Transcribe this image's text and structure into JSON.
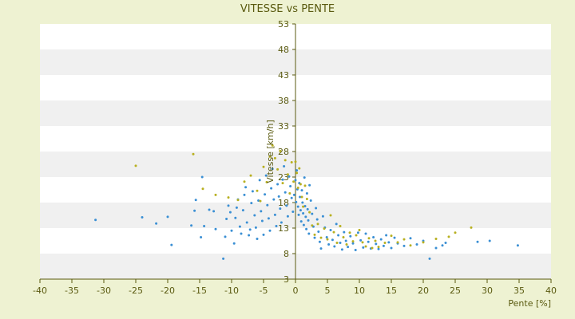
{
  "chart_data": {
    "type": "scatter",
    "title": "VITESSE vs PENTE",
    "xlabel": "Pente [%]",
    "ylabel": "Vitesse [km/h]",
    "xlim": [
      -40,
      40
    ],
    "ylim": [
      3,
      53
    ],
    "xticks": [
      -40,
      -35,
      -30,
      -25,
      -20,
      -15,
      -10,
      -5,
      0,
      5,
      10,
      15,
      20,
      25,
      30,
      35,
      40
    ],
    "yticks": [
      3,
      8,
      13,
      18,
      23,
      28,
      33,
      38,
      43,
      48,
      53
    ],
    "grid": "alternating-bands",
    "colors": {
      "background": "#eef2d2",
      "band_light": "#ffffff",
      "band_gray": "#f0f0f0",
      "axis": "#5a5a10",
      "series_a": "#3a8fd4",
      "series_b": "#b8b020"
    },
    "series": [
      {
        "color": "#3a8fd4",
        "points": [
          [
            -31.3,
            14.6
          ],
          [
            -24,
            15.1
          ],
          [
            -21.8,
            13.9
          ],
          [
            -20,
            15.2
          ],
          [
            -19.4,
            9.7
          ],
          [
            -16.3,
            13.5
          ],
          [
            -15.8,
            16.4
          ],
          [
            -15.6,
            18.5
          ],
          [
            -14.8,
            11.2
          ],
          [
            -14.6,
            23
          ],
          [
            -14.3,
            13.4
          ],
          [
            -13.5,
            16.6
          ],
          [
            -12.8,
            16.3
          ],
          [
            -12.5,
            12.8
          ],
          [
            -11.3,
            7
          ],
          [
            -11,
            11.3
          ],
          [
            -10.8,
            14.8
          ],
          [
            -10.5,
            17.4
          ],
          [
            -10.2,
            16.1
          ],
          [
            -10,
            12.5
          ],
          [
            -9.6,
            10
          ],
          [
            -9.4,
            15
          ],
          [
            -9.2,
            17
          ],
          [
            -9,
            18.6
          ],
          [
            -8.7,
            13.3
          ],
          [
            -8.5,
            11.9
          ],
          [
            -8.2,
            16.5
          ],
          [
            -8,
            19.5
          ],
          [
            -7.8,
            21
          ],
          [
            -7.6,
            14.1
          ],
          [
            -7.3,
            11.6
          ],
          [
            -7.1,
            12.7
          ],
          [
            -6.9,
            17.9
          ],
          [
            -6.7,
            20.2
          ],
          [
            -6.4,
            15.5
          ],
          [
            -6.2,
            13.1
          ],
          [
            -6,
            10.9
          ],
          [
            -5.8,
            18.4
          ],
          [
            -5.6,
            22.4
          ],
          [
            -5.4,
            16.3
          ],
          [
            -5.2,
            14.4
          ],
          [
            -5,
            11.7
          ],
          [
            -4.8,
            19.6
          ],
          [
            -4.6,
            23.3
          ],
          [
            -4.4,
            17.5
          ],
          [
            -4.2,
            14.9
          ],
          [
            -4,
            12.5
          ],
          [
            -3.8,
            20.8
          ],
          [
            -3.6,
            24.6
          ],
          [
            -3.4,
            18.6
          ],
          [
            -3.2,
            15.6
          ],
          [
            -3,
            13.4
          ],
          [
            -2.8,
            21.6
          ],
          [
            -2.6,
            19.2
          ],
          [
            -2.4,
            16.8
          ],
          [
            -2.2,
            14.1
          ],
          [
            -2,
            22.5
          ],
          [
            -1.8,
            25.1
          ],
          [
            -1.6,
            20
          ],
          [
            -1.4,
            17.4
          ],
          [
            -1.2,
            15.3
          ],
          [
            -1,
            23.1
          ],
          [
            -0.8,
            21.2
          ],
          [
            -0.6,
            18.9
          ],
          [
            -0.4,
            16.2
          ],
          [
            -0.2,
            19.5
          ],
          [
            0,
            22.4
          ],
          [
            0.1,
            18.1
          ],
          [
            0.2,
            24.3
          ],
          [
            0.3,
            20.6
          ],
          [
            0.4,
            17.2
          ],
          [
            0.5,
            15.6
          ],
          [
            0.6,
            21.8
          ],
          [
            0.7,
            19.1
          ],
          [
            0.8,
            16.5
          ],
          [
            0.9,
            14.3
          ],
          [
            1,
            20.4
          ],
          [
            1.1,
            18
          ],
          [
            1.2,
            15.9
          ],
          [
            1.3,
            13.6
          ],
          [
            1.4,
            22.9
          ],
          [
            1.5,
            17.3
          ],
          [
            1.6,
            15.2
          ],
          [
            1.7,
            12.8
          ],
          [
            1.8,
            19.8
          ],
          [
            1.9,
            16.7
          ],
          [
            2,
            14.5
          ],
          [
            2.1,
            11.9
          ],
          [
            2.2,
            21.4
          ],
          [
            2.4,
            18.4
          ],
          [
            2.6,
            15.8
          ],
          [
            2.8,
            13.3
          ],
          [
            3,
            11.1
          ],
          [
            3.2,
            16.9
          ],
          [
            3.4,
            14.7
          ],
          [
            3.6,
            12.3
          ],
          [
            3.8,
            10.3
          ],
          [
            4,
            9
          ],
          [
            4.3,
            15.3
          ],
          [
            4.6,
            13.1
          ],
          [
            4.9,
            11.2
          ],
          [
            5.2,
            9.8
          ],
          [
            5.5,
            12.6
          ],
          [
            5.8,
            10.7
          ],
          [
            6.1,
            9.4
          ],
          [
            6.4,
            13.8
          ],
          [
            6.7,
            11.6
          ],
          [
            7,
            10.1
          ],
          [
            7.3,
            8.8
          ],
          [
            7.6,
            12.2
          ],
          [
            7.9,
            10.5
          ],
          [
            8.2,
            9.3
          ],
          [
            8.6,
            11.4
          ],
          [
            9,
            10
          ],
          [
            9.4,
            8.7
          ],
          [
            9.8,
            12.1
          ],
          [
            10.2,
            10.6
          ],
          [
            10.6,
            9.2
          ],
          [
            11,
            11.9
          ],
          [
            11.4,
            10.3
          ],
          [
            11.8,
            9
          ],
          [
            12.2,
            11.2
          ],
          [
            12.6,
            9.9
          ],
          [
            13,
            8.9
          ],
          [
            13.4,
            10.8
          ],
          [
            13.8,
            9.5
          ],
          [
            14.2,
            11.6
          ],
          [
            14.6,
            10.2
          ],
          [
            15,
            9.1
          ],
          [
            15.5,
            11.1
          ],
          [
            16,
            10
          ],
          [
            17,
            9.5
          ],
          [
            18,
            11
          ],
          [
            19,
            9.8
          ],
          [
            20,
            10.5
          ],
          [
            21,
            7
          ],
          [
            22,
            9.1
          ],
          [
            23,
            9.6
          ],
          [
            23.5,
            10.1
          ],
          [
            28.5,
            10.3
          ],
          [
            30.4,
            10.5
          ],
          [
            34.8,
            9.6
          ]
        ]
      },
      {
        "color": "#b8b020",
        "points": [
          [
            -25,
            25.2
          ],
          [
            -16,
            27.5
          ],
          [
            -14.5,
            20.7
          ],
          [
            -12.5,
            19.5
          ],
          [
            -10.5,
            19
          ],
          [
            -9,
            18.5
          ],
          [
            -8,
            22.1
          ],
          [
            -7,
            23.3
          ],
          [
            -6,
            20.3
          ],
          [
            -5.5,
            18.3
          ],
          [
            -5,
            25
          ],
          [
            -4.5,
            22
          ],
          [
            -4,
            27
          ],
          [
            -3.6,
            29.2
          ],
          [
            -3.2,
            26.7
          ],
          [
            -2.8,
            24.5
          ],
          [
            -2.4,
            28.1
          ],
          [
            -2,
            21.8
          ],
          [
            -1.6,
            26.3
          ],
          [
            -1.2,
            23.5
          ],
          [
            -0.9,
            19.8
          ],
          [
            -0.6,
            25.9
          ],
          [
            -0.3,
            22.1
          ],
          [
            0,
            26
          ],
          [
            0.2,
            23.8
          ],
          [
            0.4,
            20.9
          ],
          [
            0.6,
            24.7
          ],
          [
            0.8,
            21.6
          ],
          [
            1,
            19.1
          ],
          [
            1.2,
            17.2
          ],
          [
            1.5,
            21.3
          ],
          [
            1.8,
            18.7
          ],
          [
            2.2,
            16.1
          ],
          [
            2.6,
            13.5
          ],
          [
            3,
            11.7
          ],
          [
            3.5,
            13.8
          ],
          [
            4,
            11.1
          ],
          [
            4.5,
            12.9
          ],
          [
            5,
            10.8
          ],
          [
            5.5,
            15.5
          ],
          [
            6,
            12.2
          ],
          [
            6.5,
            10.1
          ],
          [
            7,
            13.4
          ],
          [
            7.5,
            11.2
          ],
          [
            8,
            9.8
          ],
          [
            8.5,
            12.1
          ],
          [
            9,
            10.4
          ],
          [
            9.5,
            11.6
          ],
          [
            10,
            12.6
          ],
          [
            10.5,
            10.2
          ],
          [
            11,
            9.4
          ],
          [
            11.5,
            11
          ],
          [
            12,
            9.1
          ],
          [
            12.5,
            10.5
          ],
          [
            13,
            9.3
          ],
          [
            14,
            10.1
          ],
          [
            15,
            11.5
          ],
          [
            16,
            10.2
          ],
          [
            17,
            10.8
          ],
          [
            18,
            9.6
          ],
          [
            20,
            10.2
          ],
          [
            22,
            10.9
          ],
          [
            24,
            11.3
          ],
          [
            25,
            12.1
          ],
          [
            27.5,
            13.1
          ]
        ]
      }
    ]
  }
}
